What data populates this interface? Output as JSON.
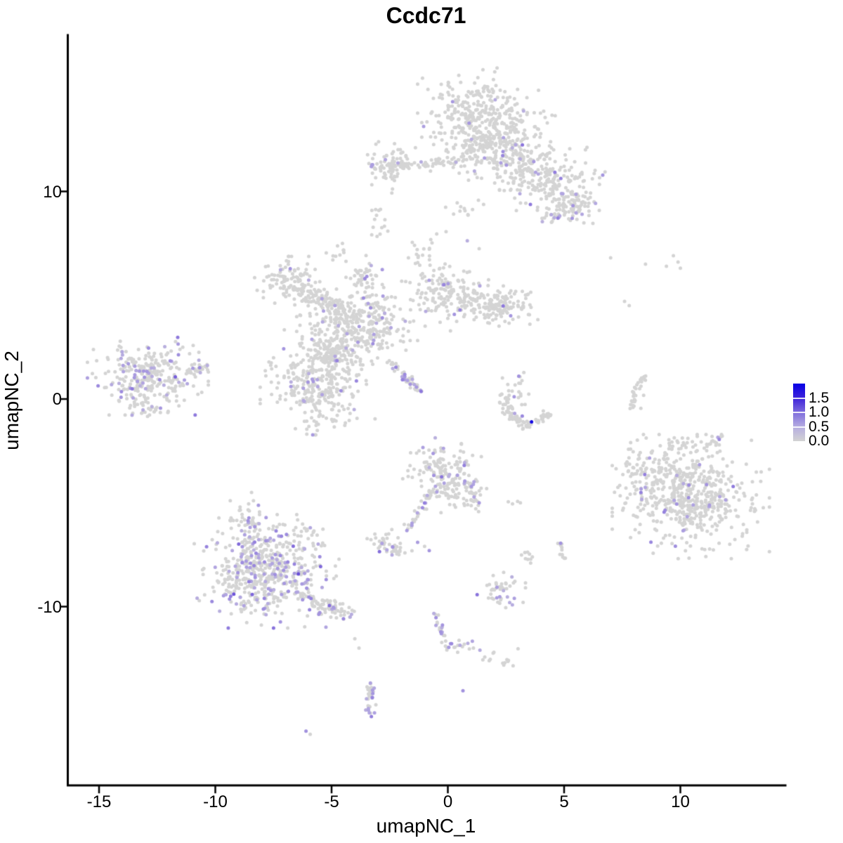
{
  "title": "Ccdc71",
  "axes": {
    "x_label": "umapNC_1",
    "y_label": "umapNC_2",
    "x_tick_values": [
      -15,
      -10,
      -5,
      0,
      5,
      10
    ],
    "y_tick_values": [
      10,
      0,
      -10
    ]
  },
  "legend": {
    "tick_labels": [
      "1.5",
      "1.0",
      "0.5",
      "0.0"
    ],
    "scale_max": 2.0,
    "scale_min": 0.0,
    "high_color": "#0800e6",
    "low_color": "#d3d3d3"
  },
  "colors": {
    "background": "#ffffff",
    "axis": "#000000",
    "zero_expression_point": "#d4d4d4",
    "mid_expression_point": "#9b84e0",
    "max_expression_point": "#1a0ddb"
  },
  "chart_data": {
    "type": "scatter",
    "title": "Ccdc71",
    "xlabel": "umapNC_1",
    "ylabel": "umapNC_2",
    "x_ticks": [
      -15,
      -10,
      -5,
      0,
      5,
      10
    ],
    "y_ticks": [
      10,
      0,
      -10
    ],
    "x_range": [
      -16.3,
      14.5
    ],
    "y_range": [
      -18.6,
      17.5
    ],
    "grid": false,
    "legend_position": "right",
    "color_scale": {
      "min": 0.0,
      "max": 2.0,
      "stops": [
        [
          0.0,
          "#d4d4d4"
        ],
        [
          0.5,
          "#b2a6e0"
        ],
        [
          1.0,
          "#8a74dc"
        ],
        [
          1.5,
          "#4526d4"
        ],
        [
          2.0,
          "#0800e6"
        ]
      ]
    },
    "point_radius_px": 2.5,
    "clusters": [
      [
        "g",
        1.3,
        14.0,
        1.0,
        0.75,
        220,
        0.025
      ],
      [
        "g",
        2.0,
        12.6,
        1.2,
        0.8,
        250,
        0.03
      ],
      [
        "g",
        3.1,
        11.3,
        0.85,
        0.6,
        130,
        0.05
      ],
      [
        "g",
        4.6,
        10.3,
        0.85,
        0.7,
        160,
        0.07
      ],
      [
        "g",
        5.35,
        9.35,
        0.5,
        0.4,
        70,
        0.08
      ],
      [
        "g",
        4.5,
        8.8,
        0.25,
        0.15,
        12,
        0.17
      ],
      [
        "s",
        -3.3,
        11.15,
        0.7,
        11.5,
        0.3,
        80,
        0.05
      ],
      [
        "g",
        -2.5,
        11.35,
        0.5,
        0.55,
        70,
        0.04
      ],
      [
        "s",
        0.8,
        11.8,
        1.9,
        12.4,
        0.5,
        55,
        0.02
      ],
      [
        "g",
        0.7,
        8.8,
        0.55,
        0.6,
        16,
        0.05
      ],
      [
        "g",
        -2.9,
        8.65,
        0.2,
        0.4,
        14,
        0.08
      ],
      [
        "g",
        -0.9,
        7.2,
        0.3,
        0.5,
        9,
        0.0
      ],
      [
        "g",
        -6.75,
        5.7,
        0.6,
        0.45,
        110,
        0.05
      ],
      [
        "s",
        -6.1,
        5.1,
        -4.6,
        4.3,
        0.5,
        85,
        0.025
      ],
      [
        "g",
        -3.6,
        5.9,
        0.3,
        0.5,
        40,
        0.05
      ],
      [
        "g",
        -3.9,
        3.6,
        1.0,
        0.85,
        360,
        0.05
      ],
      [
        "g",
        -0.1,
        5.1,
        0.75,
        0.7,
        150,
        0.04
      ],
      [
        "s",
        0.7,
        4.9,
        2.5,
        4.3,
        0.65,
        100,
        0.03
      ],
      [
        "g",
        2.65,
        4.5,
        0.55,
        0.5,
        70,
        0.03
      ],
      [
        "g",
        -5.6,
        1.0,
        0.95,
        1.05,
        320,
        0.055
      ],
      [
        "s",
        -4.6,
        2.7,
        -5.3,
        1.7,
        0.8,
        70,
        0.04
      ],
      [
        "s",
        -2.55,
        1.85,
        -1.15,
        0.35,
        0.16,
        50,
        0.3
      ],
      [
        "g",
        -4.8,
        -0.7,
        0.8,
        0.35,
        22,
        0.05
      ],
      [
        "g",
        -4.6,
        7.2,
        0.25,
        0.25,
        10,
        0.0
      ],
      [
        "g",
        -1.4,
        7.0,
        0.2,
        0.4,
        7,
        0.0
      ],
      [
        "g",
        -12.9,
        1.1,
        1.0,
        0.72,
        290,
        0.13
      ],
      [
        "s",
        -11.3,
        1.3,
        -10.3,
        1.5,
        0.3,
        26,
        0.1
      ],
      [
        "s",
        -13.7,
        -0.3,
        -11.9,
        -0.6,
        0.35,
        22,
        0.1
      ],
      [
        "s",
        2.3,
        0.25,
        2.6,
        -0.75,
        0.28,
        30,
        0.03
      ],
      [
        "s",
        2.65,
        -0.85,
        3.6,
        -1.25,
        0.25,
        40,
        0.02
      ],
      [
        "s",
        3.75,
        -1.15,
        4.35,
        -0.6,
        0.22,
        26,
        0.0
      ],
      [
        "g",
        3.0,
        0.55,
        0.45,
        0.45,
        20,
        0.06
      ],
      [
        "s",
        8.45,
        1.15,
        8.0,
        0.3,
        0.14,
        18,
        0.0
      ],
      [
        "s",
        8.0,
        0.25,
        7.88,
        -0.6,
        0.12,
        13,
        0.0
      ],
      [
        "g",
        10.45,
        -4.7,
        1.3,
        1.15,
        580,
        0.028
      ],
      [
        "g",
        8.25,
        -3.7,
        0.5,
        0.7,
        60,
        0.03
      ],
      [
        "s",
        9.4,
        -2.25,
        11.9,
        -2.05,
        0.45,
        36,
        0.03
      ],
      [
        "g",
        -7.8,
        -8.3,
        1.2,
        1.05,
        540,
        0.2
      ],
      [
        "g",
        -8.6,
        -5.9,
        0.5,
        0.55,
        55,
        0.15
      ],
      [
        "s",
        -6.3,
        -9.5,
        -4.0,
        -10.5,
        0.4,
        85,
        0.13
      ],
      [
        "g",
        -6.1,
        -6.4,
        0.5,
        0.45,
        28,
        0.1
      ],
      [
        "g",
        -0.25,
        -3.3,
        0.65,
        0.55,
        125,
        0.1
      ],
      [
        "g",
        0.3,
        -4.3,
        0.55,
        0.45,
        75,
        0.08
      ],
      [
        "s",
        -0.6,
        -4.3,
        -1.75,
        -6.35,
        0.2,
        36,
        0.2
      ],
      [
        "s",
        0.95,
        -4.2,
        1.25,
        -5.45,
        0.18,
        15,
        0.12
      ],
      [
        "g",
        -2.85,
        -6.9,
        0.3,
        0.27,
        28,
        0.13
      ],
      [
        "g",
        -2.1,
        -7.15,
        0.24,
        0.2,
        18,
        0.15
      ],
      [
        "g",
        2.3,
        -9.25,
        0.4,
        0.38,
        42,
        0.2
      ],
      [
        "g",
        3.35,
        -7.6,
        0.17,
        0.17,
        9,
        0.0
      ],
      [
        "g",
        4.95,
        -7.35,
        0.16,
        0.28,
        11,
        0.0
      ],
      [
        "s",
        -0.55,
        -10.3,
        -0.02,
        -12.1,
        0.17,
        28,
        0.25
      ],
      [
        "g",
        0.55,
        -11.9,
        0.28,
        0.18,
        12,
        0.06
      ],
      [
        "g",
        2.2,
        -12.6,
        0.33,
        0.22,
        14,
        0.0
      ],
      [
        "s",
        -3.32,
        -13.6,
        -3.45,
        -15.3,
        0.26,
        32,
        0.3
      ]
    ],
    "points": [
      [
        3.6,
        -1.1,
        1.9
      ],
      [
        3.2,
        -0.82,
        0.8
      ],
      [
        3.05,
        1.1,
        0.7
      ],
      [
        -11.6,
        2.65,
        0.6
      ],
      [
        -11.4,
        2.5,
        0.0
      ],
      [
        8.25,
        0.5,
        0.0
      ],
      [
        8.42,
        0.18,
        0.0
      ],
      [
        8.3,
        -0.45,
        0.0
      ],
      [
        7.0,
        6.8,
        0.0
      ],
      [
        8.5,
        6.5,
        0.0
      ],
      [
        9.4,
        6.4,
        0.0
      ],
      [
        9.7,
        6.9,
        0.0
      ],
      [
        9.9,
        6.6,
        0.0
      ],
      [
        10.0,
        6.3,
        0.0
      ],
      [
        7.6,
        4.7,
        0.0
      ],
      [
        7.8,
        4.5,
        0.0
      ],
      [
        -4.0,
        -11.55,
        0.0
      ],
      [
        -3.82,
        -12.0,
        0.0
      ],
      [
        -6.1,
        -16.0,
        0.7
      ],
      [
        -5.92,
        -16.15,
        0.0
      ],
      [
        -1.3,
        -6.9,
        0.6
      ],
      [
        -1.0,
        -7.1,
        0.0
      ],
      [
        -0.8,
        -7.3,
        0.65
      ],
      [
        2.4,
        -8.35,
        0.0
      ],
      [
        1.95,
        -8.5,
        0.0
      ],
      [
        2.6,
        -4.95,
        0.0
      ],
      [
        2.78,
        -5.05,
        0.0
      ],
      [
        3.0,
        -4.93,
        0.0
      ],
      [
        3.12,
        -5.0,
        0.0
      ],
      [
        4.85,
        -6.95,
        0.7
      ],
      [
        1.1,
        -12.0,
        0.0
      ],
      [
        1.38,
        -12.1,
        0.45
      ],
      [
        0.65,
        -14.05,
        0.7
      ]
    ]
  }
}
